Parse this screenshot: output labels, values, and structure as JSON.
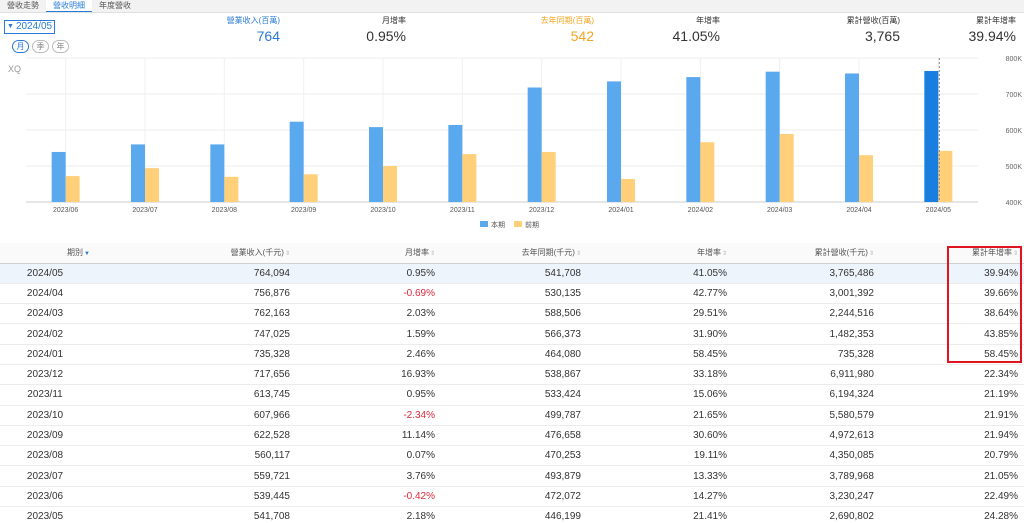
{
  "tabs": [
    {
      "label": "營收走勢",
      "active": false
    },
    {
      "label": "營收明細",
      "active": true
    },
    {
      "label": "年度營收",
      "active": false
    }
  ],
  "period_select": {
    "value": "2024/05"
  },
  "frequency": [
    {
      "label": "月",
      "active": true
    },
    {
      "label": "季",
      "active": false
    },
    {
      "label": "年",
      "active": false
    }
  ],
  "kpis": [
    {
      "label": "營業收入(百萬)",
      "value": "764",
      "color": "#2a7bd5"
    },
    {
      "label": "月增率",
      "value": "0.95%",
      "color": "#333333"
    },
    {
      "label": "去年同期(百萬)",
      "value": "542",
      "color": "#f5a623"
    },
    {
      "label": "年增率",
      "value": "41.05%",
      "color": "#333333"
    },
    {
      "label": "累計營收(百萬)",
      "value": "3,765",
      "color": "#333333"
    },
    {
      "label": "累計年增率",
      "value": "39.94%",
      "color": "#333333"
    }
  ],
  "watermark": "XQ",
  "chart_data": {
    "type": "bar",
    "categories": [
      "2023/06",
      "2023/07",
      "2023/08",
      "2023/09",
      "2023/10",
      "2023/11",
      "2023/12",
      "2024/01",
      "2024/02",
      "2024/03",
      "2024/04",
      "2024/05"
    ],
    "series": [
      {
        "name": "本期",
        "color": "#5aa9ef",
        "values": [
          539,
          560,
          560,
          623,
          608,
          614,
          718,
          735,
          747,
          762,
          757,
          764
        ]
      },
      {
        "name": "前期",
        "color": "#ffcf7a",
        "values": [
          472,
          494,
          470,
          477,
          500,
          533,
          539,
          464,
          566,
          589,
          530,
          542
        ]
      }
    ],
    "highlight_color": "#1a7ee0",
    "ylim": [
      400,
      800
    ],
    "yticks": [
      "400K",
      "500K",
      "600K",
      "700K",
      "800K"
    ],
    "ytick_values": [
      400,
      500,
      600,
      700,
      800
    ],
    "legend_position": "bottom-center"
  },
  "table": {
    "headers": [
      "期別",
      "營業收入(千元)",
      "月增率",
      "去年同期(千元)",
      "年增率",
      "累計營收(千元)",
      "累計年增率"
    ],
    "rows": [
      [
        "2024/05",
        "764,094",
        "0.95%",
        "541,708",
        "41.05%",
        "3,765,486",
        "39.94%"
      ],
      [
        "2024/04",
        "756,876",
        "-0.69%",
        "530,135",
        "42.77%",
        "3,001,392",
        "39.66%"
      ],
      [
        "2024/03",
        "762,163",
        "2.03%",
        "588,506",
        "29.51%",
        "2,244,516",
        "38.64%"
      ],
      [
        "2024/02",
        "747,025",
        "1.59%",
        "566,373",
        "31.90%",
        "1,482,353",
        "43.85%"
      ],
      [
        "2024/01",
        "735,328",
        "2.46%",
        "464,080",
        "58.45%",
        "735,328",
        "58.45%"
      ],
      [
        "2023/12",
        "717,656",
        "16.93%",
        "538,867",
        "33.18%",
        "6,911,980",
        "22.34%"
      ],
      [
        "2023/11",
        "613,745",
        "0.95%",
        "533,424",
        "15.06%",
        "6,194,324",
        "21.19%"
      ],
      [
        "2023/10",
        "607,966",
        "-2.34%",
        "499,787",
        "21.65%",
        "5,580,579",
        "21.91%"
      ],
      [
        "2023/09",
        "622,528",
        "11.14%",
        "476,658",
        "30.60%",
        "4,972,613",
        "21.94%"
      ],
      [
        "2023/08",
        "560,117",
        "0.07%",
        "470,253",
        "19.11%",
        "4,350,085",
        "20.79%"
      ],
      [
        "2023/07",
        "559,721",
        "3.76%",
        "493,879",
        "13.33%",
        "3,789,968",
        "21.05%"
      ],
      [
        "2023/06",
        "539,445",
        "-0.42%",
        "472,072",
        "14.27%",
        "3,230,247",
        "22.49%"
      ],
      [
        "2023/05",
        "541,708",
        "2.18%",
        "446,199",
        "21.41%",
        "2,690,802",
        "24.28%"
      ]
    ]
  },
  "highlight_box_color": "#e0141e"
}
